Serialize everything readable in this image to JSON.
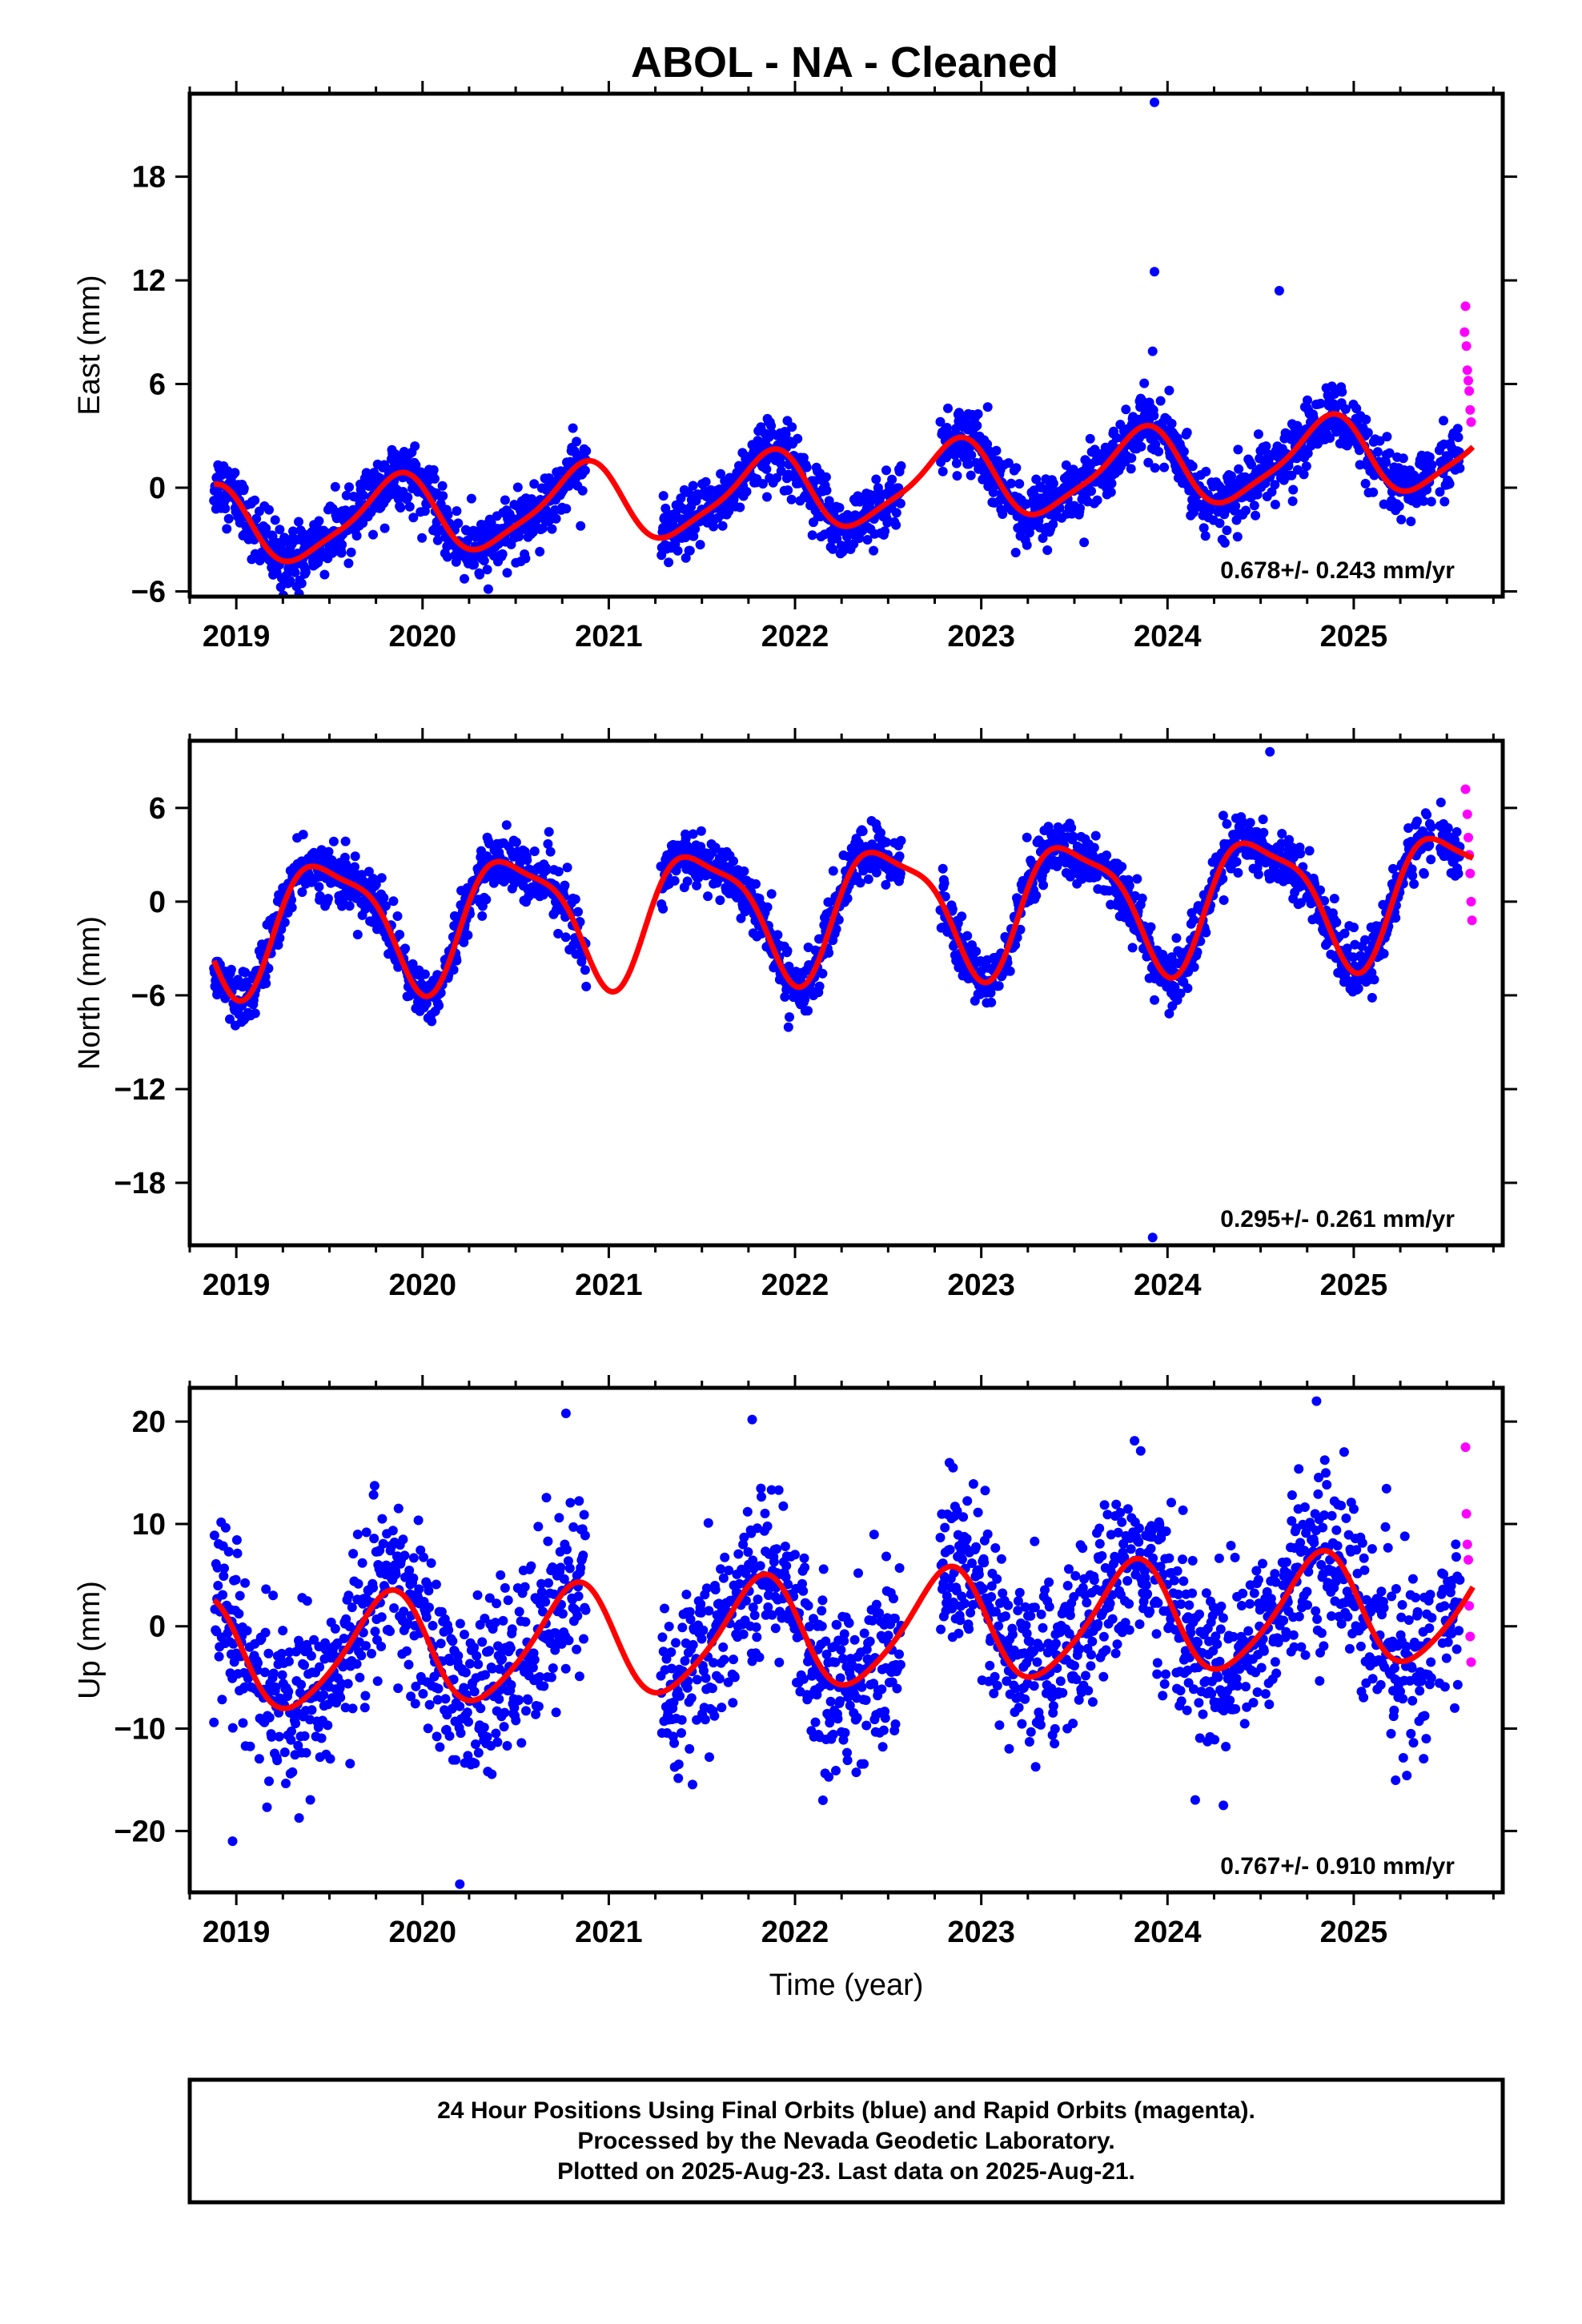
{
  "title": "ABOL  - NA - Cleaned",
  "footer": {
    "lines": [
      "24 Hour Positions Using Final Orbits (blue) and Rapid Orbits (magenta).",
      "Processed by the Nevada Geodetic Laboratory.",
      "Plotted on 2025-Aug-23. Last data on 2025-Aug-21."
    ]
  },
  "colors": {
    "final_orbits": "#0000ff",
    "rapid_orbits": "#ff00ff",
    "model_fit": "#ff0000"
  },
  "chart_data": [
    {
      "type": "scatter",
      "component": "east",
      "ylabel": "East (mm)",
      "xlabel": "",
      "xlim": [
        2018.75,
        2025.8
      ],
      "ylim": [
        -6.3,
        22.8
      ],
      "xticks": [
        "2019",
        "2020",
        "2021",
        "2022",
        "2023",
        "2024",
        "2025"
      ],
      "yticks": [
        "-6",
        "0",
        "6",
        "12",
        "18"
      ],
      "grid": false,
      "rate_text": "0.678+/- 0.243 mm/yr",
      "fit": {
        "trend_mm_per_yr": 0.678,
        "offset_mm": -0.1,
        "annual_amplitude_mm": 2.2,
        "annual_peak_year_fraction": 0.85,
        "semiannual_amplitude_mm": 0.5,
        "semiannual_phase_rad": 0.8
      },
      "final_orbit_segments": [
        [
          2018.88,
          2020.88
        ],
        [
          2021.28,
          2022.57
        ],
        [
          2022.78,
          2025.42
        ],
        [
          2025.46,
          2025.57
        ]
      ],
      "rapid_orbit_segment": [
        2025.58,
        2025.64
      ],
      "final_orbit_scatter_sd_mm": 0.9,
      "rapid_orbit_points": [
        {
          "x": 2025.6,
          "y": 10.5
        },
        {
          "x": 2025.595,
          "y": 9.0
        },
        {
          "x": 2025.605,
          "y": 8.2
        },
        {
          "x": 2025.61,
          "y": 6.8
        },
        {
          "x": 2025.615,
          "y": 6.2
        },
        {
          "x": 2025.62,
          "y": 5.6
        },
        {
          "x": 2025.625,
          "y": 4.5
        },
        {
          "x": 2025.63,
          "y": 3.8
        }
      ],
      "outliers": [
        {
          "x": 2023.93,
          "y": 22.3
        },
        {
          "x": 2023.93,
          "y": 12.5
        },
        {
          "x": 2023.92,
          "y": 7.9
        },
        {
          "x": 2024.6,
          "y": 11.4
        }
      ]
    },
    {
      "type": "scatter",
      "component": "north",
      "ylabel": "North (mm)",
      "xlabel": "",
      "xlim": [
        2018.75,
        2025.8
      ],
      "ylim": [
        -22.0,
        10.3
      ],
      "xticks": [
        "2019",
        "2020",
        "2021",
        "2022",
        "2023",
        "2024",
        "2025"
      ],
      "yticks": [
        "-18",
        "-12",
        "-6",
        "0",
        "6"
      ],
      "grid": false,
      "rate_text": "0.295+/- 0.261 mm/yr",
      "fit": {
        "trend_mm_per_yr": 0.295,
        "offset_mm": -0.4,
        "annual_amplitude_mm": 4.0,
        "annual_peak_year_fraction": 0.5,
        "semiannual_amplitude_mm": 1.1,
        "semiannual_phase_rad": 2.6
      },
      "final_orbit_segments": [
        [
          2018.88,
          2020.88
        ],
        [
          2021.28,
          2022.57
        ],
        [
          2022.78,
          2025.42
        ],
        [
          2025.46,
          2025.57
        ]
      ],
      "rapid_orbit_segment": [
        2025.58,
        2025.64
      ],
      "final_orbit_scatter_sd_mm": 0.9,
      "rapid_orbit_points": [
        {
          "x": 2025.6,
          "y": 7.2
        },
        {
          "x": 2025.61,
          "y": 5.6
        },
        {
          "x": 2025.615,
          "y": 4.1
        },
        {
          "x": 2025.62,
          "y": 3.0
        },
        {
          "x": 2025.625,
          "y": 1.8
        },
        {
          "x": 2025.63,
          "y": 0.0
        },
        {
          "x": 2025.635,
          "y": -1.2
        }
      ],
      "outliers": [
        {
          "x": 2023.92,
          "y": -21.5
        },
        {
          "x": 2023.93,
          "y": -6.3
        },
        {
          "x": 2024.55,
          "y": 9.6
        }
      ]
    },
    {
      "type": "scatter",
      "component": "up",
      "ylabel": "Up (mm)",
      "xlabel": "Time (year)",
      "xlim": [
        2018.75,
        2025.8
      ],
      "ylim": [
        -26.0,
        23.3
      ],
      "xticks": [
        "2019",
        "2020",
        "2021",
        "2022",
        "2023",
        "2024",
        "2025"
      ],
      "yticks": [
        "-20",
        "-10",
        "0",
        "10",
        "20"
      ],
      "grid": false,
      "rate_text": "0.767+/- 0.910 mm/yr",
      "fit": {
        "trend_mm_per_yr": 0.767,
        "offset_mm": -0.6,
        "annual_amplitude_mm": 5.4,
        "annual_peak_year_fraction": 0.81,
        "semiannual_amplitude_mm": 0.8,
        "semiannual_phase_rad": 1.4
      },
      "final_orbit_segments": [
        [
          2018.88,
          2020.88
        ],
        [
          2021.28,
          2022.57
        ],
        [
          2022.78,
          2025.42
        ],
        [
          2025.46,
          2025.57
        ]
      ],
      "rapid_orbit_segment": [
        2025.58,
        2025.64
      ],
      "final_orbit_scatter_sd_mm": 4.2,
      "rapid_orbit_points": [
        {
          "x": 2025.6,
          "y": 17.5
        },
        {
          "x": 2025.605,
          "y": 11.0
        },
        {
          "x": 2025.61,
          "y": 8.0
        },
        {
          "x": 2025.615,
          "y": 6.5
        },
        {
          "x": 2025.62,
          "y": 2.0
        },
        {
          "x": 2025.625,
          "y": -1.0
        },
        {
          "x": 2025.63,
          "y": -3.5
        }
      ],
      "outliers": [
        {
          "x": 2018.98,
          "y": -21.0
        },
        {
          "x": 2020.2,
          "y": -25.2
        },
        {
          "x": 2020.77,
          "y": 20.8
        },
        {
          "x": 2021.77,
          "y": 20.2
        },
        {
          "x": 2024.8,
          "y": 22.0
        },
        {
          "x": 2024.3,
          "y": -17.5
        },
        {
          "x": 2022.15,
          "y": -17.0
        }
      ]
    }
  ]
}
